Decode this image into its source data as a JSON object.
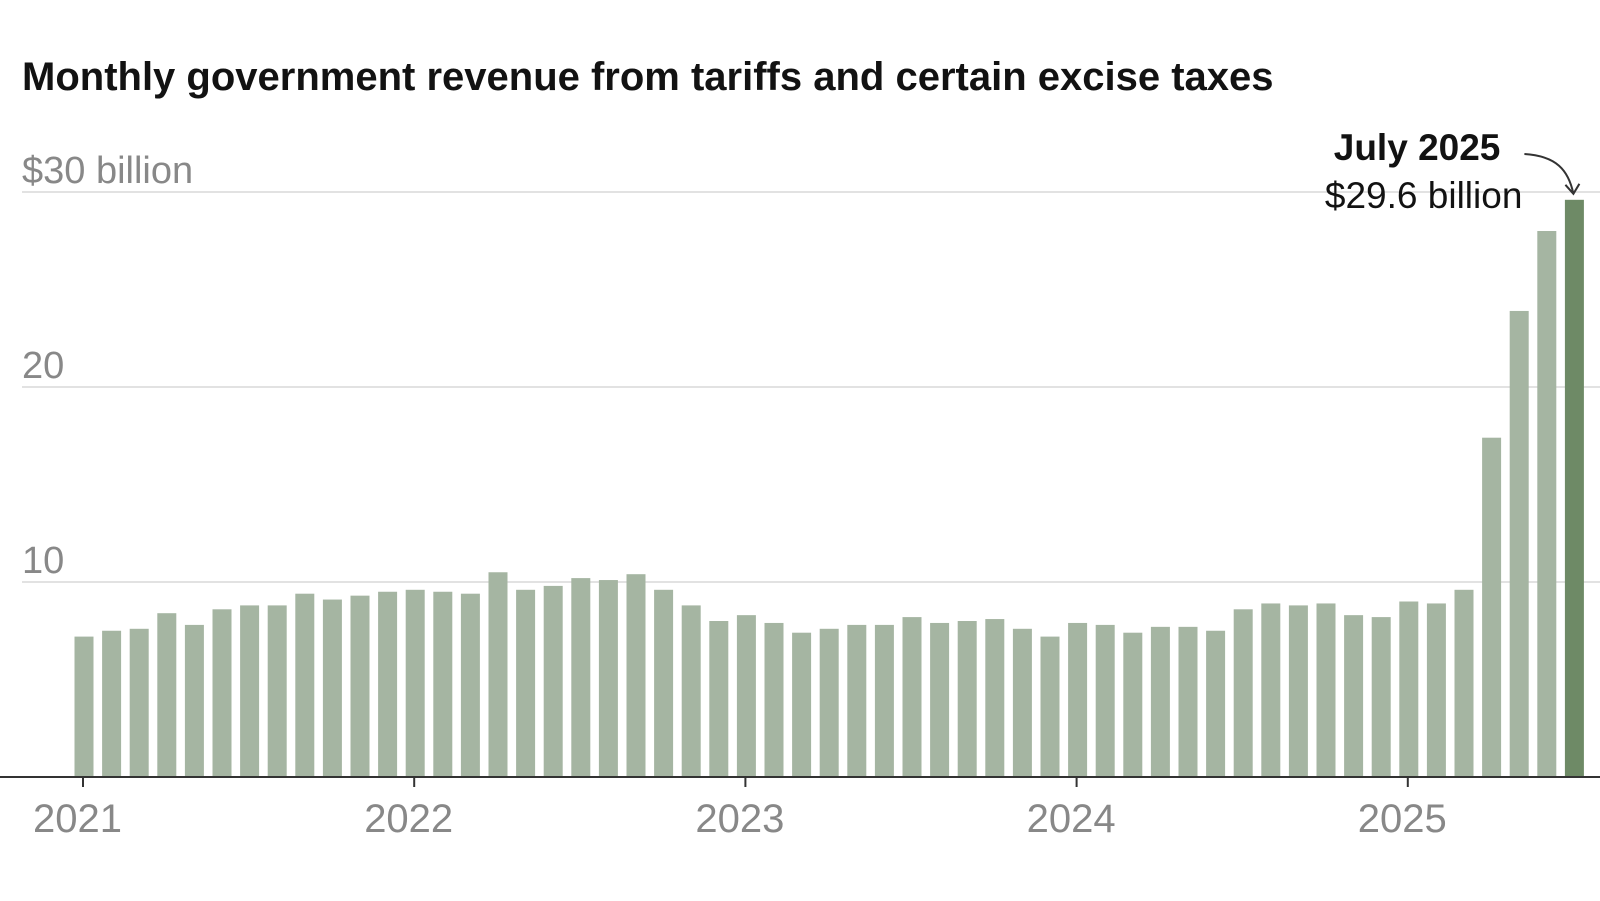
{
  "chart_data": {
    "type": "bar",
    "title": "Monthly government revenue from tariffs and certain excise taxes",
    "xlabel": "",
    "ylabel": "",
    "ylim": [
      0,
      30
    ],
    "y_ticks": [
      {
        "value": 10,
        "label": "10"
      },
      {
        "value": 20,
        "label": "20"
      },
      {
        "value": 30,
        "label": "$30 billion"
      }
    ],
    "x_ticks": [
      {
        "index": 0,
        "label": "2021"
      },
      {
        "index": 12,
        "label": "2022"
      },
      {
        "index": 24,
        "label": "2023"
      },
      {
        "index": 36,
        "label": "2024"
      },
      {
        "index": 48,
        "label": "2025"
      }
    ],
    "grid": true,
    "legend": "none",
    "colors": {
      "bar": "#a5b5a2",
      "highlight": "#6e8a66"
    },
    "series": [
      {
        "values": [
          7.2,
          7.5,
          7.6,
          8.4,
          7.8,
          8.6,
          8.8,
          8.8,
          9.4,
          9.1,
          9.3,
          9.5,
          9.6,
          9.5,
          9.4,
          10.5,
          9.6,
          9.8,
          10.2,
          10.1,
          10.4,
          9.6,
          8.8,
          8.0,
          8.3,
          7.9,
          7.4,
          7.6,
          7.8,
          7.8,
          8.2,
          7.9,
          8.0,
          8.1,
          7.6,
          7.2,
          7.9,
          7.8,
          7.4,
          7.7,
          7.7,
          7.5,
          8.6,
          8.9,
          8.8,
          8.9,
          8.3,
          8.2,
          9.0,
          8.9,
          9.6,
          17.4,
          23.9,
          28.0,
          29.6
        ]
      }
    ],
    "highlight_index": 54,
    "annotation": {
      "title": "July 2025",
      "value": "$29.6 billion"
    }
  }
}
